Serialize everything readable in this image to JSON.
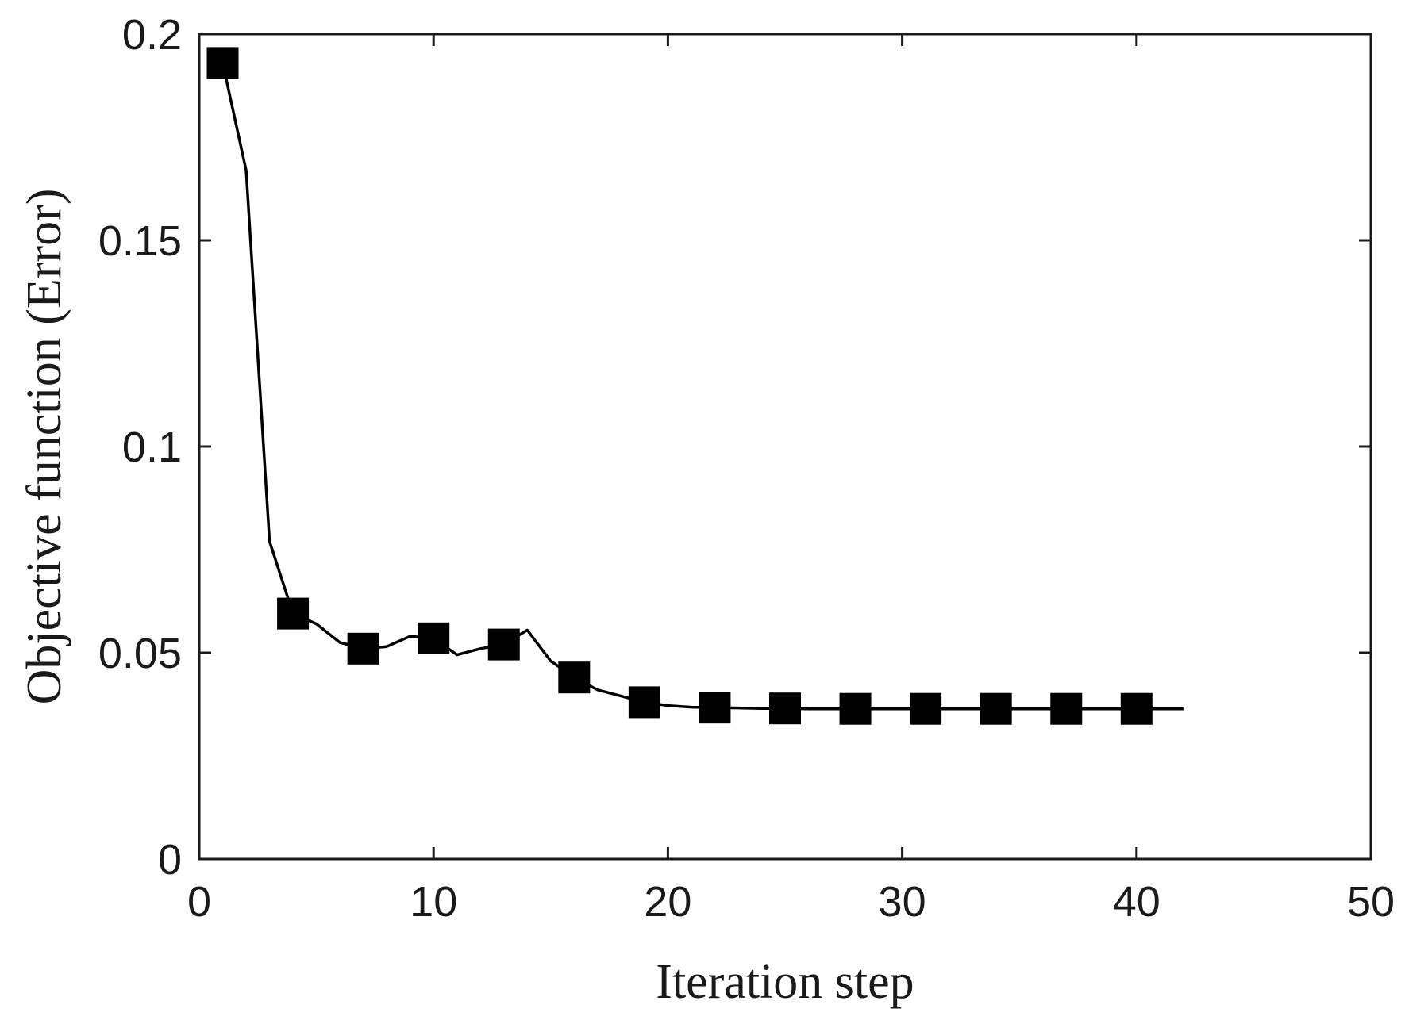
{
  "chart_data": {
    "type": "line",
    "title": "",
    "xlabel": "Iteration step",
    "ylabel": "Objective function (Error)",
    "xlim": [
      0,
      50
    ],
    "ylim": [
      0,
      0.2
    ],
    "xticks": [
      0,
      10,
      20,
      30,
      40,
      50
    ],
    "xtick_labels": [
      "0",
      "10",
      "20",
      "30",
      "40",
      "50"
    ],
    "yticks": [
      0,
      0.05,
      0.1,
      0.15,
      0.2
    ],
    "ytick_labels": [
      "0",
      "0.05",
      "0.1",
      "0.15",
      "0.2"
    ],
    "grid": false,
    "legend": "none",
    "series": [
      {
        "line_color": "#000000",
        "marker": "square",
        "x": [
          1,
          2,
          3,
          4,
          5,
          6,
          7,
          8,
          9,
          10,
          11,
          12,
          13,
          14,
          15,
          16,
          17,
          18,
          19,
          20,
          21,
          22,
          23,
          24,
          25,
          26,
          27,
          28,
          29,
          30,
          31,
          32,
          33,
          34,
          35,
          36,
          37,
          38,
          39,
          40,
          41,
          42
        ],
        "y": [
          0.193,
          0.167,
          0.077,
          0.0595,
          0.057,
          0.0525,
          0.051,
          0.0515,
          0.054,
          0.0535,
          0.0495,
          0.051,
          0.052,
          0.0555,
          0.048,
          0.044,
          0.041,
          0.0395,
          0.038,
          0.0372,
          0.0368,
          0.0367,
          0.0366,
          0.0365,
          0.0365,
          0.0364,
          0.0364,
          0.0364,
          0.0364,
          0.0364,
          0.0364,
          0.0364,
          0.0364,
          0.0364,
          0.0364,
          0.0364,
          0.0364,
          0.0364,
          0.0364,
          0.0364,
          0.0364,
          0.0364
        ],
        "marker_x": [
          1,
          4,
          7,
          10,
          13,
          16,
          19,
          22,
          25,
          28,
          31,
          34,
          37,
          40
        ],
        "marker_y": [
          0.193,
          0.0595,
          0.051,
          0.0535,
          0.052,
          0.044,
          0.038,
          0.0367,
          0.0365,
          0.0364,
          0.0364,
          0.0364,
          0.0364,
          0.0364
        ]
      }
    ]
  }
}
